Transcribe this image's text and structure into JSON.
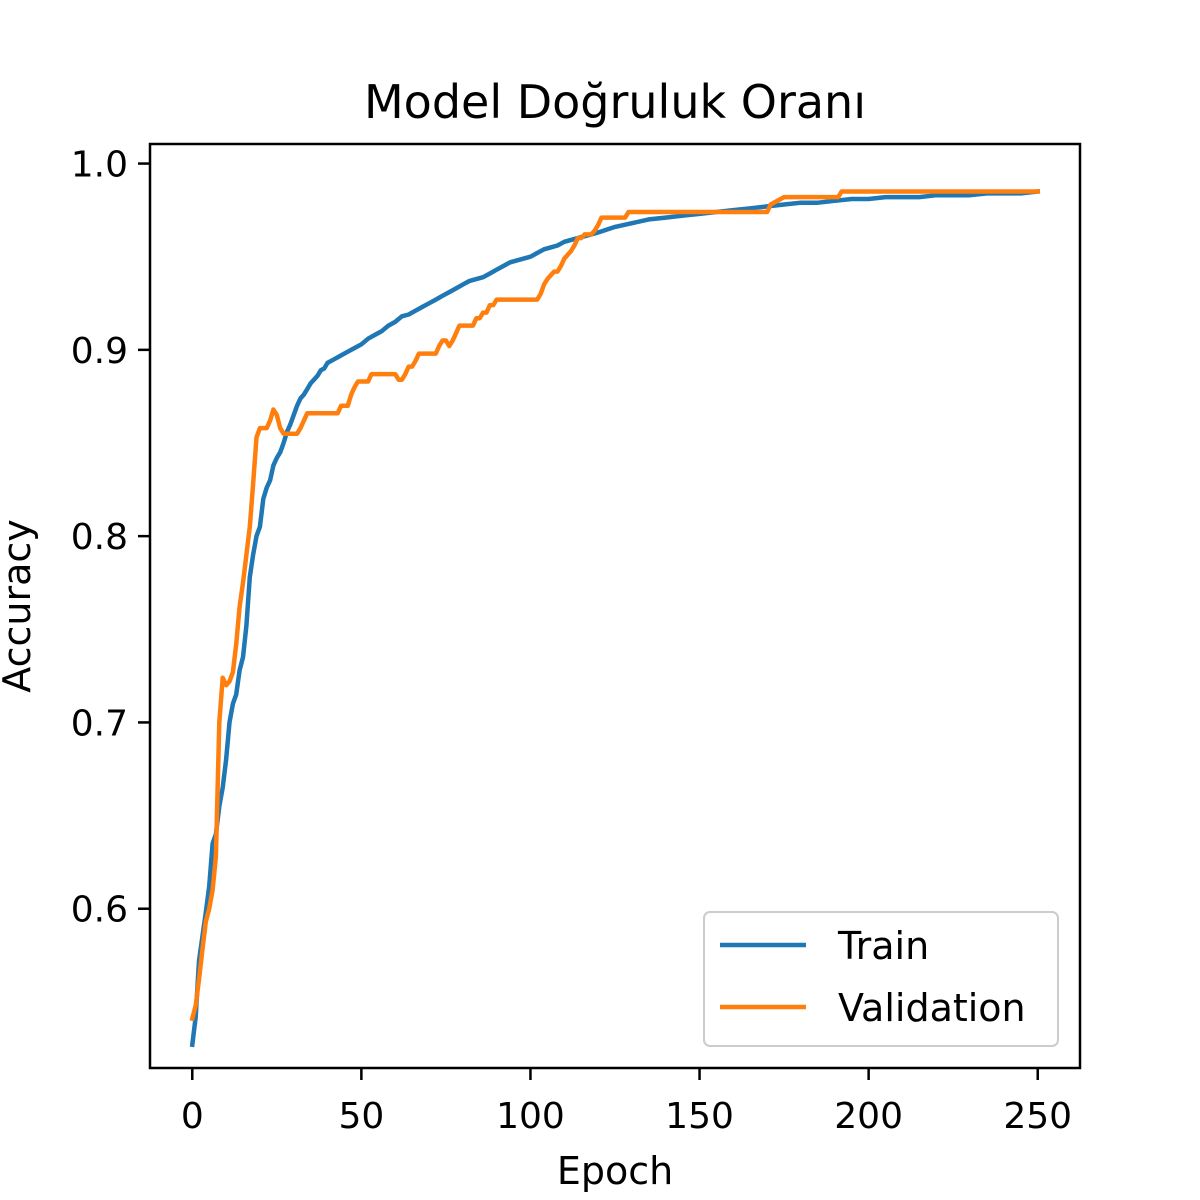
{
  "chart_data": {
    "type": "line",
    "title": "Model Doğruluk Oranı",
    "xlabel": "Epoch",
    "ylabel": "Accuracy",
    "xlim": [
      -12.5,
      262.5
    ],
    "ylim": [
      0.5145,
      1.0105
    ],
    "x_ticks": [
      0,
      50,
      100,
      150,
      200,
      250
    ],
    "x_tick_labels": [
      "0",
      "50",
      "100",
      "150",
      "200",
      "250"
    ],
    "y_ticks": [
      0.6,
      0.7,
      0.8,
      0.9,
      1.0
    ],
    "y_tick_labels": [
      "0.6",
      "0.7",
      "0.8",
      "0.9",
      "1.0"
    ],
    "grid": false,
    "legend_position": "lower-right",
    "series": [
      {
        "name": "Train",
        "color": "#1f77b4",
        "x": [
          0,
          1,
          2,
          3,
          4,
          5,
          6,
          7,
          8,
          9,
          10,
          11,
          12,
          13,
          14,
          15,
          16,
          17,
          18,
          19,
          20,
          21,
          22,
          23,
          24,
          25,
          26,
          27,
          28,
          29,
          30,
          31,
          32,
          33,
          34,
          35,
          36,
          37,
          38,
          39,
          40,
          42,
          44,
          46,
          48,
          50,
          52,
          54,
          56,
          58,
          60,
          62,
          64,
          66,
          68,
          70,
          72,
          74,
          76,
          78,
          80,
          82,
          84,
          86,
          88,
          90,
          92,
          94,
          96,
          98,
          100,
          102,
          104,
          106,
          108,
          110,
          112,
          114,
          116,
          118,
          120,
          125,
          130,
          135,
          140,
          145,
          150,
          155,
          160,
          165,
          170,
          175,
          180,
          185,
          190,
          195,
          200,
          205,
          210,
          215,
          220,
          225,
          230,
          235,
          240,
          245,
          250
        ],
        "y": [
          0.527,
          0.542,
          0.572,
          0.585,
          0.598,
          0.612,
          0.635,
          0.64,
          0.655,
          0.665,
          0.68,
          0.7,
          0.71,
          0.715,
          0.728,
          0.735,
          0.752,
          0.778,
          0.79,
          0.8,
          0.805,
          0.82,
          0.826,
          0.83,
          0.838,
          0.842,
          0.845,
          0.85,
          0.856,
          0.86,
          0.865,
          0.87,
          0.874,
          0.876,
          0.879,
          0.882,
          0.884,
          0.886,
          0.889,
          0.89,
          0.893,
          0.895,
          0.897,
          0.899,
          0.901,
          0.903,
          0.906,
          0.908,
          0.91,
          0.913,
          0.915,
          0.918,
          0.919,
          0.921,
          0.923,
          0.925,
          0.927,
          0.929,
          0.931,
          0.933,
          0.935,
          0.937,
          0.938,
          0.939,
          0.941,
          0.943,
          0.945,
          0.947,
          0.948,
          0.949,
          0.95,
          0.952,
          0.954,
          0.955,
          0.956,
          0.958,
          0.959,
          0.96,
          0.961,
          0.962,
          0.963,
          0.966,
          0.968,
          0.97,
          0.971,
          0.972,
          0.973,
          0.974,
          0.975,
          0.976,
          0.977,
          0.978,
          0.979,
          0.979,
          0.98,
          0.981,
          0.981,
          0.982,
          0.982,
          0.982,
          0.983,
          0.983,
          0.983,
          0.984,
          0.984,
          0.984,
          0.985
        ]
      },
      {
        "name": "Validation",
        "color": "#ff7f0e",
        "x": [
          0,
          1,
          2,
          3,
          4,
          5,
          6,
          7,
          8,
          9,
          10,
          11,
          12,
          13,
          14,
          15,
          16,
          17,
          18,
          19,
          20,
          21,
          22,
          23,
          24,
          25,
          26,
          27,
          28,
          29,
          30,
          31,
          32,
          33,
          34,
          35,
          36,
          37,
          38,
          39,
          40,
          41,
          42,
          43,
          44,
          45,
          46,
          47,
          48,
          49,
          50,
          51,
          52,
          53,
          54,
          55,
          56,
          57,
          58,
          59,
          60,
          61,
          62,
          63,
          64,
          65,
          66,
          67,
          68,
          69,
          70,
          71,
          72,
          73,
          74,
          75,
          76,
          77,
          78,
          79,
          80,
          81,
          82,
          83,
          84,
          85,
          86,
          87,
          88,
          89,
          90,
          91,
          92,
          93,
          94,
          95,
          96,
          97,
          98,
          99,
          100,
          101,
          102,
          103,
          104,
          105,
          106,
          107,
          108,
          109,
          110,
          111,
          112,
          113,
          114,
          115,
          116,
          117,
          118,
          119,
          120,
          121,
          122,
          123,
          124,
          125,
          126,
          127,
          128,
          129,
          130,
          135,
          140,
          145,
          150,
          155,
          160,
          165,
          170,
          171,
          175,
          180,
          185,
          190,
          191,
          192,
          195,
          200,
          205,
          210,
          215,
          220,
          225,
          230,
          235,
          240,
          245,
          250
        ],
        "y": [
          0.541,
          0.548,
          0.562,
          0.578,
          0.593,
          0.6,
          0.61,
          0.628,
          0.7,
          0.724,
          0.72,
          0.722,
          0.727,
          0.742,
          0.762,
          0.775,
          0.79,
          0.805,
          0.828,
          0.853,
          0.858,
          0.858,
          0.858,
          0.862,
          0.868,
          0.865,
          0.858,
          0.855,
          0.855,
          0.855,
          0.855,
          0.855,
          0.858,
          0.862,
          0.866,
          0.866,
          0.866,
          0.866,
          0.866,
          0.866,
          0.866,
          0.866,
          0.866,
          0.866,
          0.87,
          0.87,
          0.87,
          0.876,
          0.88,
          0.883,
          0.883,
          0.883,
          0.883,
          0.887,
          0.887,
          0.887,
          0.887,
          0.887,
          0.887,
          0.887,
          0.887,
          0.884,
          0.884,
          0.887,
          0.891,
          0.891,
          0.894,
          0.898,
          0.898,
          0.898,
          0.898,
          0.898,
          0.898,
          0.902,
          0.905,
          0.905,
          0.902,
          0.905,
          0.909,
          0.913,
          0.913,
          0.913,
          0.913,
          0.913,
          0.917,
          0.917,
          0.92,
          0.92,
          0.924,
          0.924,
          0.927,
          0.927,
          0.927,
          0.927,
          0.927,
          0.927,
          0.927,
          0.927,
          0.927,
          0.927,
          0.927,
          0.927,
          0.927,
          0.93,
          0.935,
          0.938,
          0.94,
          0.942,
          0.942,
          0.945,
          0.949,
          0.951,
          0.953,
          0.956,
          0.96,
          0.96,
          0.962,
          0.962,
          0.962,
          0.964,
          0.967,
          0.971,
          0.971,
          0.971,
          0.971,
          0.971,
          0.971,
          0.971,
          0.971,
          0.974,
          0.974,
          0.974,
          0.974,
          0.974,
          0.974,
          0.974,
          0.974,
          0.974,
          0.974,
          0.978,
          0.982,
          0.982,
          0.982,
          0.982,
          0.982,
          0.985,
          0.985,
          0.985,
          0.985,
          0.985,
          0.985,
          0.985,
          0.985,
          0.985,
          0.985,
          0.985,
          0.985,
          0.985
        ]
      }
    ]
  }
}
